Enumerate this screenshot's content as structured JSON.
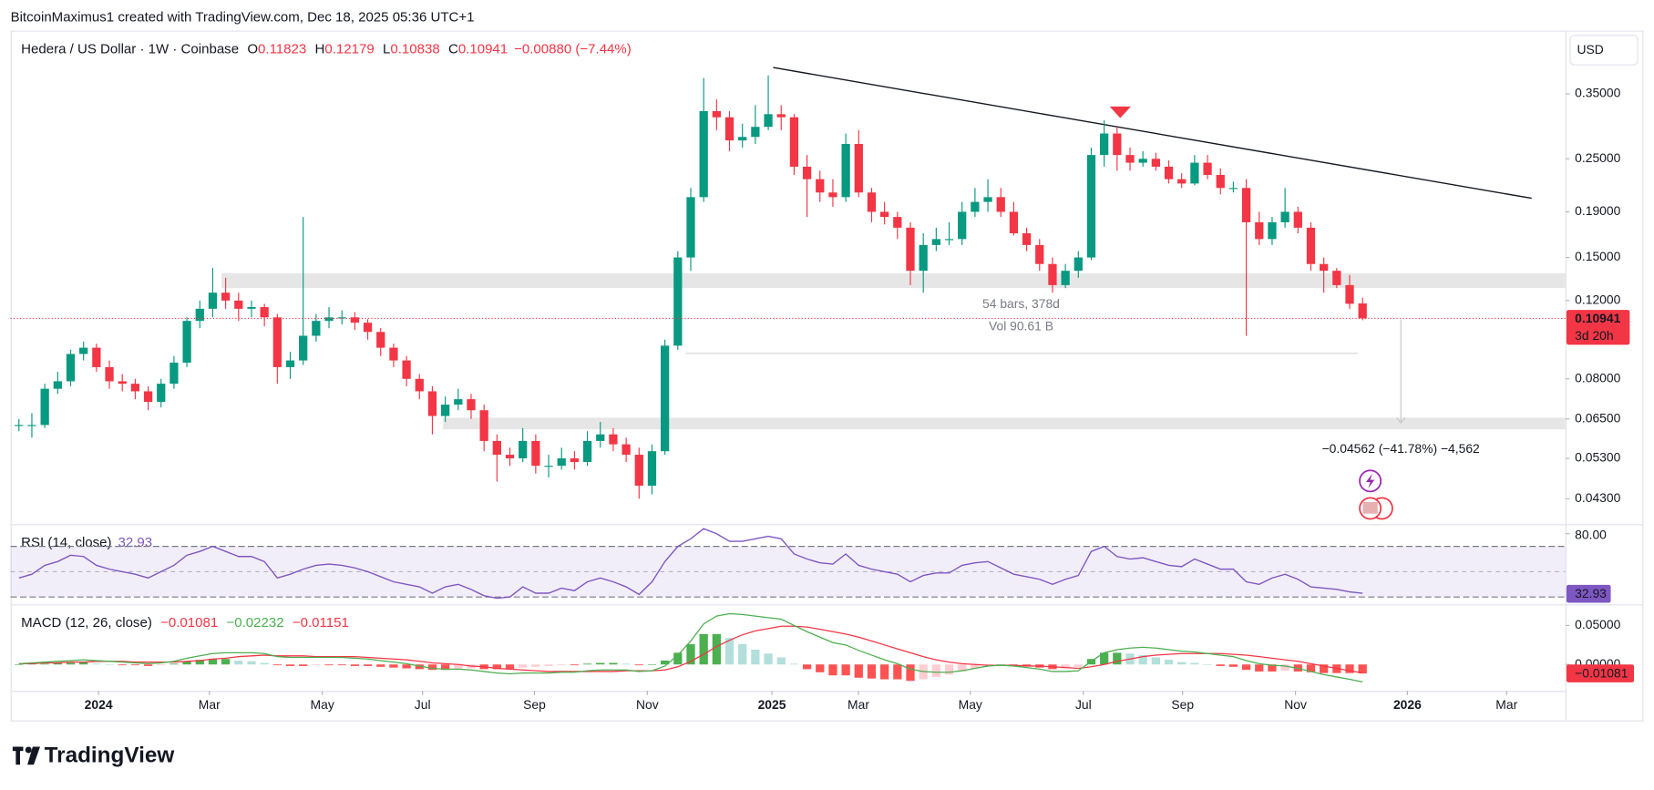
{
  "header": {
    "byline": "BitcoinMaximus1 created with TradingView.com, Dec 18, 2025 05:36 UTC+1"
  },
  "footer": {
    "brand": "TradingView"
  },
  "chart_data": [
    {
      "type": "candlestick",
      "title": "Hedera / US Dollar · 1W · Coinbase",
      "ohlc": [
        {
          "key": "O",
          "value": 0.11823
        },
        {
          "key": "H",
          "value": 0.12179
        },
        {
          "key": "L",
          "value": 0.10838
        },
        {
          "key": "C",
          "value": 0.10941
        }
      ],
      "change": "−0.00880 (−7.44%)",
      "currency": "USD",
      "countdown": "3d 20h",
      "annotations": {
        "range": "54 bars, 378d",
        "volume": "Vol 90.61 B",
        "projection": "−0.04562 (−41.78%) −4,562"
      },
      "up_color": "#089981",
      "down_color": "#f23645",
      "log": true,
      "grid": false,
      "ylim": [
        0.0381,
        0.483
      ],
      "yticks": [
        {
          "value": 0.35,
          "label": "0.35000"
        },
        {
          "value": 0.25,
          "label": "0.25000"
        },
        {
          "value": 0.19,
          "label": "0.19000"
        },
        {
          "value": 0.15,
          "label": "0.15000"
        },
        {
          "value": 0.12,
          "label": "0.12000"
        },
        {
          "value": 0.08,
          "label": "0.08000"
        },
        {
          "value": 0.065,
          "label": "0.06500"
        },
        {
          "value": 0.053,
          "label": "0.05300"
        },
        {
          "value": 0.043,
          "label": "0.04300"
        }
      ],
      "xlim": [
        -0.65,
        119.7
      ],
      "xticks": [
        {
          "value": 6.16,
          "label": "2024"
        },
        {
          "value": 14.74,
          "label": "Mar"
        },
        {
          "value": 23.48,
          "label": "May"
        },
        {
          "value": 31.24,
          "label": "Jul"
        },
        {
          "value": 39.9,
          "label": "Sep"
        },
        {
          "value": 48.64,
          "label": "Nov"
        },
        {
          "value": 58.28,
          "label": "2025"
        },
        {
          "value": 64.98,
          "label": "Mar"
        },
        {
          "value": 73.64,
          "label": "May"
        },
        {
          "value": 82.39,
          "label": "Jul"
        },
        {
          "value": 90.07,
          "label": "Sep"
        },
        {
          "value": 98.81,
          "label": "Nov"
        },
        {
          "value": 107.47,
          "label": "2026"
        },
        {
          "value": 115.15,
          "label": "Mar"
        }
      ],
      "open": [
        0.063,
        0.063,
        0.063,
        0.076,
        0.079,
        0.091,
        0.094,
        0.085,
        0.079,
        0.078,
        0.075,
        0.071,
        0.078,
        0.087,
        0.108,
        0.115,
        0.125,
        0.12,
        0.115,
        0.116,
        0.11,
        0.085,
        0.088,
        0.1,
        0.108,
        0.11,
        0.11,
        0.107,
        0.102,
        0.094,
        0.088,
        0.08,
        0.075,
        0.066,
        0.07,
        0.072,
        0.068,
        0.058,
        0.054,
        0.053,
        0.058,
        0.051,
        0.051,
        0.053,
        0.052,
        0.058,
        0.06,
        0.057,
        0.054,
        0.046,
        0.055,
        0.095,
        0.15,
        0.205,
        0.32,
        0.31,
        0.275,
        0.28,
        0.295,
        0.315,
        0.31,
        0.24,
        0.225,
        0.21,
        0.205,
        0.27,
        0.21,
        0.19,
        0.185,
        0.175,
        0.14,
        0.16,
        0.165,
        0.165,
        0.19,
        0.2,
        0.205,
        0.19,
        0.17,
        0.16,
        0.145,
        0.13,
        0.14,
        0.15,
        0.255,
        0.285,
        0.255,
        0.245,
        0.25,
        0.24,
        0.225,
        0.22,
        0.245,
        0.23,
        0.215,
        0.215,
        0.18,
        0.165,
        0.18,
        0.19,
        0.175,
        0.145,
        0.14,
        0.13,
        0.11823
      ],
      "high": [
        0.065,
        0.067,
        0.078,
        0.083,
        0.093,
        0.097,
        0.096,
        0.088,
        0.082,
        0.08,
        0.077,
        0.08,
        0.09,
        0.11,
        0.12,
        0.142,
        0.135,
        0.125,
        0.12,
        0.118,
        0.112,
        0.092,
        0.185,
        0.112,
        0.116,
        0.114,
        0.113,
        0.109,
        0.104,
        0.096,
        0.09,
        0.082,
        0.077,
        0.073,
        0.076,
        0.074,
        0.07,
        0.06,
        0.056,
        0.062,
        0.06,
        0.054,
        0.056,
        0.055,
        0.061,
        0.064,
        0.062,
        0.059,
        0.056,
        0.057,
        0.098,
        0.155,
        0.215,
        0.38,
        0.34,
        0.32,
        0.3,
        0.33,
        0.385,
        0.33,
        0.315,
        0.255,
        0.235,
        0.225,
        0.285,
        0.29,
        0.215,
        0.2,
        0.19,
        0.18,
        0.17,
        0.175,
        0.18,
        0.2,
        0.215,
        0.225,
        0.215,
        0.2,
        0.175,
        0.165,
        0.15,
        0.145,
        0.155,
        0.265,
        0.305,
        0.295,
        0.265,
        0.26,
        0.258,
        0.248,
        0.232,
        0.255,
        0.255,
        0.238,
        0.222,
        0.225,
        0.19,
        0.185,
        0.215,
        0.195,
        0.18,
        0.15,
        0.142,
        0.137,
        0.12179
      ],
      "low": [
        0.061,
        0.059,
        0.062,
        0.074,
        0.077,
        0.088,
        0.083,
        0.076,
        0.075,
        0.072,
        0.068,
        0.069,
        0.076,
        0.085,
        0.104,
        0.11,
        0.115,
        0.108,
        0.11,
        0.105,
        0.078,
        0.08,
        0.086,
        0.097,
        0.104,
        0.106,
        0.103,
        0.098,
        0.09,
        0.085,
        0.077,
        0.072,
        0.06,
        0.064,
        0.068,
        0.065,
        0.055,
        0.047,
        0.051,
        0.052,
        0.049,
        0.048,
        0.05,
        0.05,
        0.051,
        0.056,
        0.055,
        0.052,
        0.043,
        0.044,
        0.054,
        0.093,
        0.14,
        0.2,
        0.29,
        0.26,
        0.265,
        0.27,
        0.29,
        0.29,
        0.23,
        0.185,
        0.2,
        0.195,
        0.2,
        0.205,
        0.18,
        0.178,
        0.165,
        0.13,
        0.125,
        0.155,
        0.16,
        0.16,
        0.185,
        0.19,
        0.185,
        0.168,
        0.155,
        0.14,
        0.125,
        0.128,
        0.135,
        0.148,
        0.24,
        0.235,
        0.235,
        0.24,
        0.235,
        0.22,
        0.215,
        0.218,
        0.225,
        0.208,
        0.21,
        0.1,
        0.16,
        0.16,
        0.175,
        0.17,
        0.14,
        0.125,
        0.128,
        0.115,
        0.10838
      ],
      "close": [
        0.063,
        0.063,
        0.076,
        0.079,
        0.091,
        0.094,
        0.085,
        0.079,
        0.078,
        0.075,
        0.071,
        0.078,
        0.087,
        0.108,
        0.115,
        0.125,
        0.12,
        0.115,
        0.116,
        0.11,
        0.085,
        0.088,
        0.1,
        0.108,
        0.11,
        0.11,
        0.107,
        0.102,
        0.094,
        0.088,
        0.08,
        0.075,
        0.066,
        0.07,
        0.072,
        0.068,
        0.058,
        0.054,
        0.053,
        0.058,
        0.051,
        0.051,
        0.053,
        0.052,
        0.058,
        0.06,
        0.057,
        0.054,
        0.046,
        0.055,
        0.095,
        0.15,
        0.205,
        0.32,
        0.31,
        0.275,
        0.28,
        0.295,
        0.315,
        0.31,
        0.24,
        0.225,
        0.21,
        0.205,
        0.27,
        0.21,
        0.19,
        0.185,
        0.175,
        0.14,
        0.16,
        0.165,
        0.165,
        0.19,
        0.2,
        0.205,
        0.19,
        0.17,
        0.16,
        0.145,
        0.13,
        0.14,
        0.15,
        0.255,
        0.285,
        0.255,
        0.245,
        0.25,
        0.24,
        0.225,
        0.22,
        0.245,
        0.23,
        0.215,
        0.215,
        0.18,
        0.165,
        0.18,
        0.19,
        0.175,
        0.145,
        0.14,
        0.13,
        0.118,
        0.10941
      ]
    },
    {
      "type": "line",
      "title": "RSI (14, close)",
      "color": "#7e57c2",
      "ylim": [
        25,
        86.7
      ],
      "yticks": [
        {
          "value": 80,
          "label": "80.00"
        }
      ],
      "bands": [
        70,
        50,
        30
      ],
      "values": [
        45,
        48,
        55,
        58,
        63,
        62,
        55,
        52,
        50,
        48,
        45,
        50,
        55,
        63,
        66,
        70,
        66,
        62,
        62,
        58,
        45,
        48,
        52,
        55,
        56,
        55,
        53,
        50,
        46,
        42,
        40,
        38,
        33,
        38,
        40,
        36,
        31,
        29,
        30,
        38,
        33,
        33,
        37,
        35,
        42,
        45,
        42,
        38,
        32,
        42,
        58,
        70,
        76,
        84,
        80,
        74,
        74,
        76,
        78,
        76,
        64,
        60,
        57,
        56,
        64,
        55,
        52,
        50,
        48,
        42,
        47,
        49,
        49,
        55,
        57,
        58,
        53,
        48,
        46,
        44,
        40,
        44,
        47,
        66,
        70,
        62,
        60,
        61,
        58,
        55,
        54,
        60,
        56,
        52,
        52,
        42,
        40,
        45,
        48,
        44,
        38,
        37,
        36,
        34,
        32.93
      ]
    },
    {
      "type": "macd",
      "title": "MACD (12, 26, close)",
      "ylim": [
        -0.0338,
        0.0743
      ],
      "yticks": [
        {
          "value": 0.05,
          "label": "0.05000"
        },
        {
          "value": 0,
          "label": "0.00000"
        }
      ],
      "legend": [
        {
          "value": -0.01081,
          "label": "−0.01081"
        },
        {
          "value": -0.02232,
          "label": "−0.02232"
        },
        {
          "value": -0.01151,
          "label": "−0.01151"
        }
      ],
      "series": [
        {
          "color": "#f23645",
          "values": [
            0.001,
            0.001,
            0.002,
            0.002,
            0.003,
            0.003,
            0.004,
            0.004,
            0.004,
            0.003,
            0.003,
            0.003,
            0.003,
            0.004,
            0.005,
            0.007,
            0.008,
            0.01,
            0.011,
            0.012,
            0.011,
            0.011,
            0.011,
            0.01,
            0.01,
            0.01,
            0.01,
            0.009,
            0.008,
            0.007,
            0.006,
            0.004,
            0.002,
            0.001,
            0.0,
            -0.002,
            -0.003,
            -0.005,
            -0.006,
            -0.007,
            -0.008,
            -0.009,
            -0.009,
            -0.009,
            -0.009,
            -0.009,
            -0.009,
            -0.008,
            -0.008,
            -0.008,
            -0.007,
            -0.003,
            0.004,
            0.013,
            0.023,
            0.031,
            0.038,
            0.043,
            0.046,
            0.049,
            0.049,
            0.048,
            0.045,
            0.042,
            0.039,
            0.035,
            0.03,
            0.025,
            0.02,
            0.015,
            0.01,
            0.006,
            0.003,
            0.001,
            0.0,
            -0.001,
            -0.001,
            -0.001,
            -0.002,
            -0.002,
            -0.003,
            -0.004,
            -0.005,
            -0.003,
            0.0,
            0.004,
            0.007,
            0.01,
            0.012,
            0.013,
            0.014,
            0.014,
            0.014,
            0.014,
            0.013,
            0.012,
            0.01,
            0.008,
            0.006,
            0.004,
            0.001,
            -0.002,
            -0.005,
            -0.008,
            -0.01081
          ]
        },
        {
          "color": "#4caf50",
          "values": [
            0.001,
            0.002,
            0.003,
            0.004,
            0.005,
            0.006,
            0.005,
            0.004,
            0.003,
            0.002,
            0.001,
            0.002,
            0.004,
            0.008,
            0.011,
            0.014,
            0.015,
            0.015,
            0.015,
            0.014,
            0.01,
            0.009,
            0.009,
            0.009,
            0.009,
            0.009,
            0.008,
            0.007,
            0.005,
            0.003,
            0.001,
            -0.002,
            -0.005,
            -0.006,
            -0.006,
            -0.007,
            -0.009,
            -0.011,
            -0.012,
            -0.011,
            -0.011,
            -0.011,
            -0.01,
            -0.01,
            -0.008,
            -0.007,
            -0.007,
            -0.007,
            -0.009,
            -0.008,
            -0.002,
            0.012,
            0.03,
            0.052,
            0.062,
            0.065,
            0.064,
            0.062,
            0.06,
            0.058,
            0.05,
            0.042,
            0.035,
            0.028,
            0.025,
            0.018,
            0.012,
            0.006,
            0.001,
            -0.006,
            -0.009,
            -0.01,
            -0.01,
            -0.008,
            -0.005,
            -0.002,
            -0.001,
            -0.002,
            -0.004,
            -0.006,
            -0.009,
            -0.009,
            -0.008,
            0.004,
            0.015,
            0.019,
            0.021,
            0.022,
            0.021,
            0.019,
            0.017,
            0.016,
            0.014,
            0.012,
            0.01,
            0.005,
            0.001,
            -0.001,
            -0.002,
            -0.005,
            -0.009,
            -0.013,
            -0.016,
            -0.019,
            -0.02232
          ]
        }
      ],
      "histogram": [
        0,
        0.001,
        0.001,
        0.002,
        0.002,
        0.003,
        0.001,
        0,
        -0.001,
        -0.001,
        -0.002,
        -0.001,
        0.001,
        0.004,
        0.006,
        0.007,
        0.007,
        0.005,
        0.004,
        0.002,
        -0.001,
        -0.002,
        -0.002,
        -0.001,
        -0.001,
        -0.001,
        -0.002,
        -0.002,
        -0.003,
        -0.004,
        -0.005,
        -0.006,
        -0.007,
        -0.007,
        -0.006,
        -0.005,
        -0.006,
        -0.006,
        -0.006,
        -0.004,
        -0.003,
        -0.002,
        -0.001,
        -0.001,
        0.001,
        0.002,
        0.002,
        0.001,
        -0.001,
        0,
        0.005,
        0.015,
        0.026,
        0.039,
        0.039,
        0.034,
        0.026,
        0.019,
        0.014,
        0.009,
        0.001,
        -0.006,
        -0.01,
        -0.014,
        -0.014,
        -0.017,
        -0.018,
        -0.019,
        -0.019,
        -0.021,
        -0.019,
        -0.016,
        -0.013,
        -0.009,
        -0.005,
        -0.001,
        0,
        -0.001,
        -0.002,
        -0.004,
        -0.006,
        -0.005,
        -0.003,
        0.007,
        0.015,
        0.015,
        0.014,
        0.012,
        0.009,
        0.006,
        0.003,
        0.002,
        0,
        -0.002,
        -0.003,
        -0.007,
        -0.009,
        -0.009,
        -0.008,
        -0.009,
        -0.01,
        -0.011,
        -0.011,
        -0.011,
        -0.01151
      ]
    }
  ]
}
